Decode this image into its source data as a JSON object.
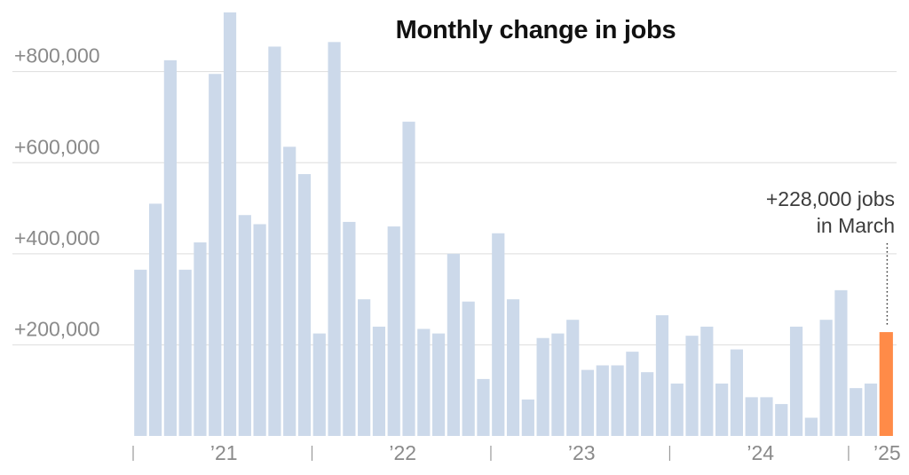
{
  "chart_data": {
    "type": "bar",
    "title": "Monthly change in jobs",
    "xlabel": "",
    "ylabel": "",
    "ylim": [
      0,
      930000
    ],
    "y_ticks": [
      {
        "value": 200000,
        "label": "+200,000"
      },
      {
        "value": 400000,
        "label": "+400,000"
      },
      {
        "value": 600000,
        "label": "+600,000"
      },
      {
        "value": 800000,
        "label": "+800,000"
      }
    ],
    "x_ticks": [
      {
        "index": 5.5,
        "label": "’21"
      },
      {
        "index": 17.5,
        "label": "’22"
      },
      {
        "index": 29.5,
        "label": "’23"
      },
      {
        "index": 41.5,
        "label": "’24"
      },
      {
        "index": 50,
        "label": "’25"
      }
    ],
    "year_boundaries": [
      -0.5,
      11.5,
      23.5,
      35.5,
      47.5
    ],
    "categories": [
      "Jan 2021",
      "Feb 2021",
      "Mar 2021",
      "Apr 2021",
      "May 2021",
      "Jun 2021",
      "Jul 2021",
      "Aug 2021",
      "Sep 2021",
      "Oct 2021",
      "Nov 2021",
      "Dec 2021",
      "Jan 2022",
      "Feb 2022",
      "Mar 2022",
      "Apr 2022",
      "May 2022",
      "Jun 2022",
      "Jul 2022",
      "Aug 2022",
      "Sep 2022",
      "Oct 2022",
      "Nov 2022",
      "Dec 2022",
      "Jan 2023",
      "Feb 2023",
      "Mar 2023",
      "Apr 2023",
      "May 2023",
      "Jun 2023",
      "Jul 2023",
      "Aug 2023",
      "Sep 2023",
      "Oct 2023",
      "Nov 2023",
      "Dec 2023",
      "Jan 2024",
      "Feb 2024",
      "Mar 2024",
      "Apr 2024",
      "May 2024",
      "Jun 2024",
      "Jul 2024",
      "Aug 2024",
      "Sep 2024",
      "Oct 2024",
      "Nov 2024",
      "Dec 2024",
      "Jan 2025",
      "Feb 2025",
      "Mar 2025"
    ],
    "values": [
      365000,
      510000,
      825000,
      365000,
      425000,
      795000,
      930000,
      485000,
      465000,
      855000,
      635000,
      575000,
      225000,
      865000,
      470000,
      300000,
      240000,
      460000,
      690000,
      235000,
      225000,
      400000,
      295000,
      125000,
      445000,
      300000,
      80000,
      215000,
      225000,
      255000,
      145000,
      155000,
      155000,
      185000,
      140000,
      265000,
      115000,
      220000,
      240000,
      115000,
      190000,
      85000,
      85000,
      70000,
      240000,
      40000,
      255000,
      320000,
      105000,
      115000,
      228000
    ],
    "highlight_index": 50,
    "colors": {
      "bar": "#ccd9ea",
      "highlight": "#ff8b48",
      "grid": "#dddddd",
      "axis": "#999999"
    },
    "annotation": {
      "index": 50,
      "line1": "+228,000 jobs",
      "line2": "in March"
    }
  }
}
